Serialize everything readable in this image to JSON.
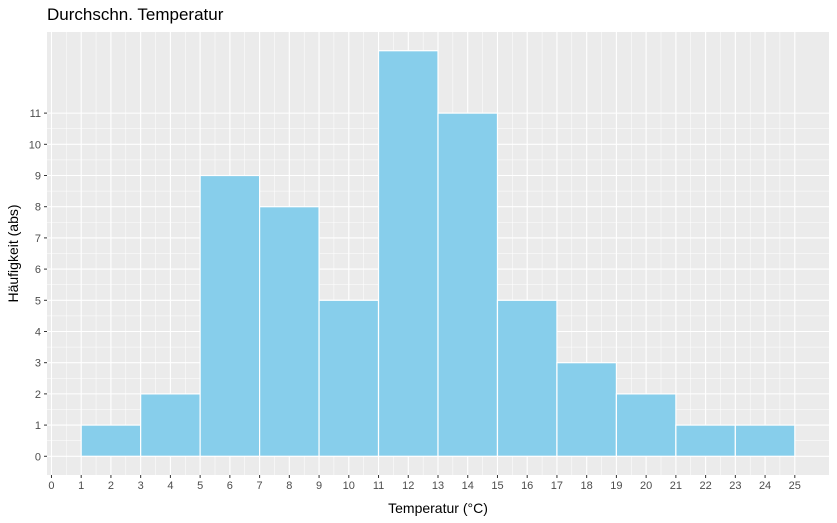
{
  "chart_data": {
    "type": "histogram",
    "title": "Durchschn. Temperatur",
    "xlabel": "Temperatur (°C)",
    "ylabel": "Häufigkeit (abs)",
    "x_ticks": [
      0,
      1,
      2,
      3,
      4,
      5,
      6,
      7,
      8,
      9,
      10,
      11,
      12,
      13,
      14,
      15,
      16,
      17,
      18,
      19,
      20,
      21,
      22,
      23,
      24,
      25
    ],
    "y_ticks": [
      0,
      1,
      2,
      3,
      4,
      5,
      6,
      7,
      8,
      9,
      10,
      11
    ],
    "xlim": [
      -0.15,
      26.15
    ],
    "ylim": [
      -0.6,
      13.6
    ],
    "bins": [
      {
        "start": 1,
        "end": 3,
        "count": 1
      },
      {
        "start": 3,
        "end": 5,
        "count": 2
      },
      {
        "start": 5,
        "end": 7,
        "count": 9
      },
      {
        "start": 7,
        "end": 9,
        "count": 8
      },
      {
        "start": 9,
        "end": 11,
        "count": 5
      },
      {
        "start": 11,
        "end": 13,
        "count": 13
      },
      {
        "start": 13,
        "end": 15,
        "count": 11
      },
      {
        "start": 15,
        "end": 17,
        "count": 5
      },
      {
        "start": 17,
        "end": 19,
        "count": 3
      },
      {
        "start": 19,
        "end": 21,
        "count": 2
      },
      {
        "start": 21,
        "end": 23,
        "count": 1
      },
      {
        "start": 23,
        "end": 25,
        "count": 1
      }
    ],
    "grid": true,
    "colors": {
      "bar_fill": "#87ceeb",
      "bar_stroke": "#ffffff",
      "panel_background": "#ebebeb",
      "grid": "#ffffff"
    }
  }
}
